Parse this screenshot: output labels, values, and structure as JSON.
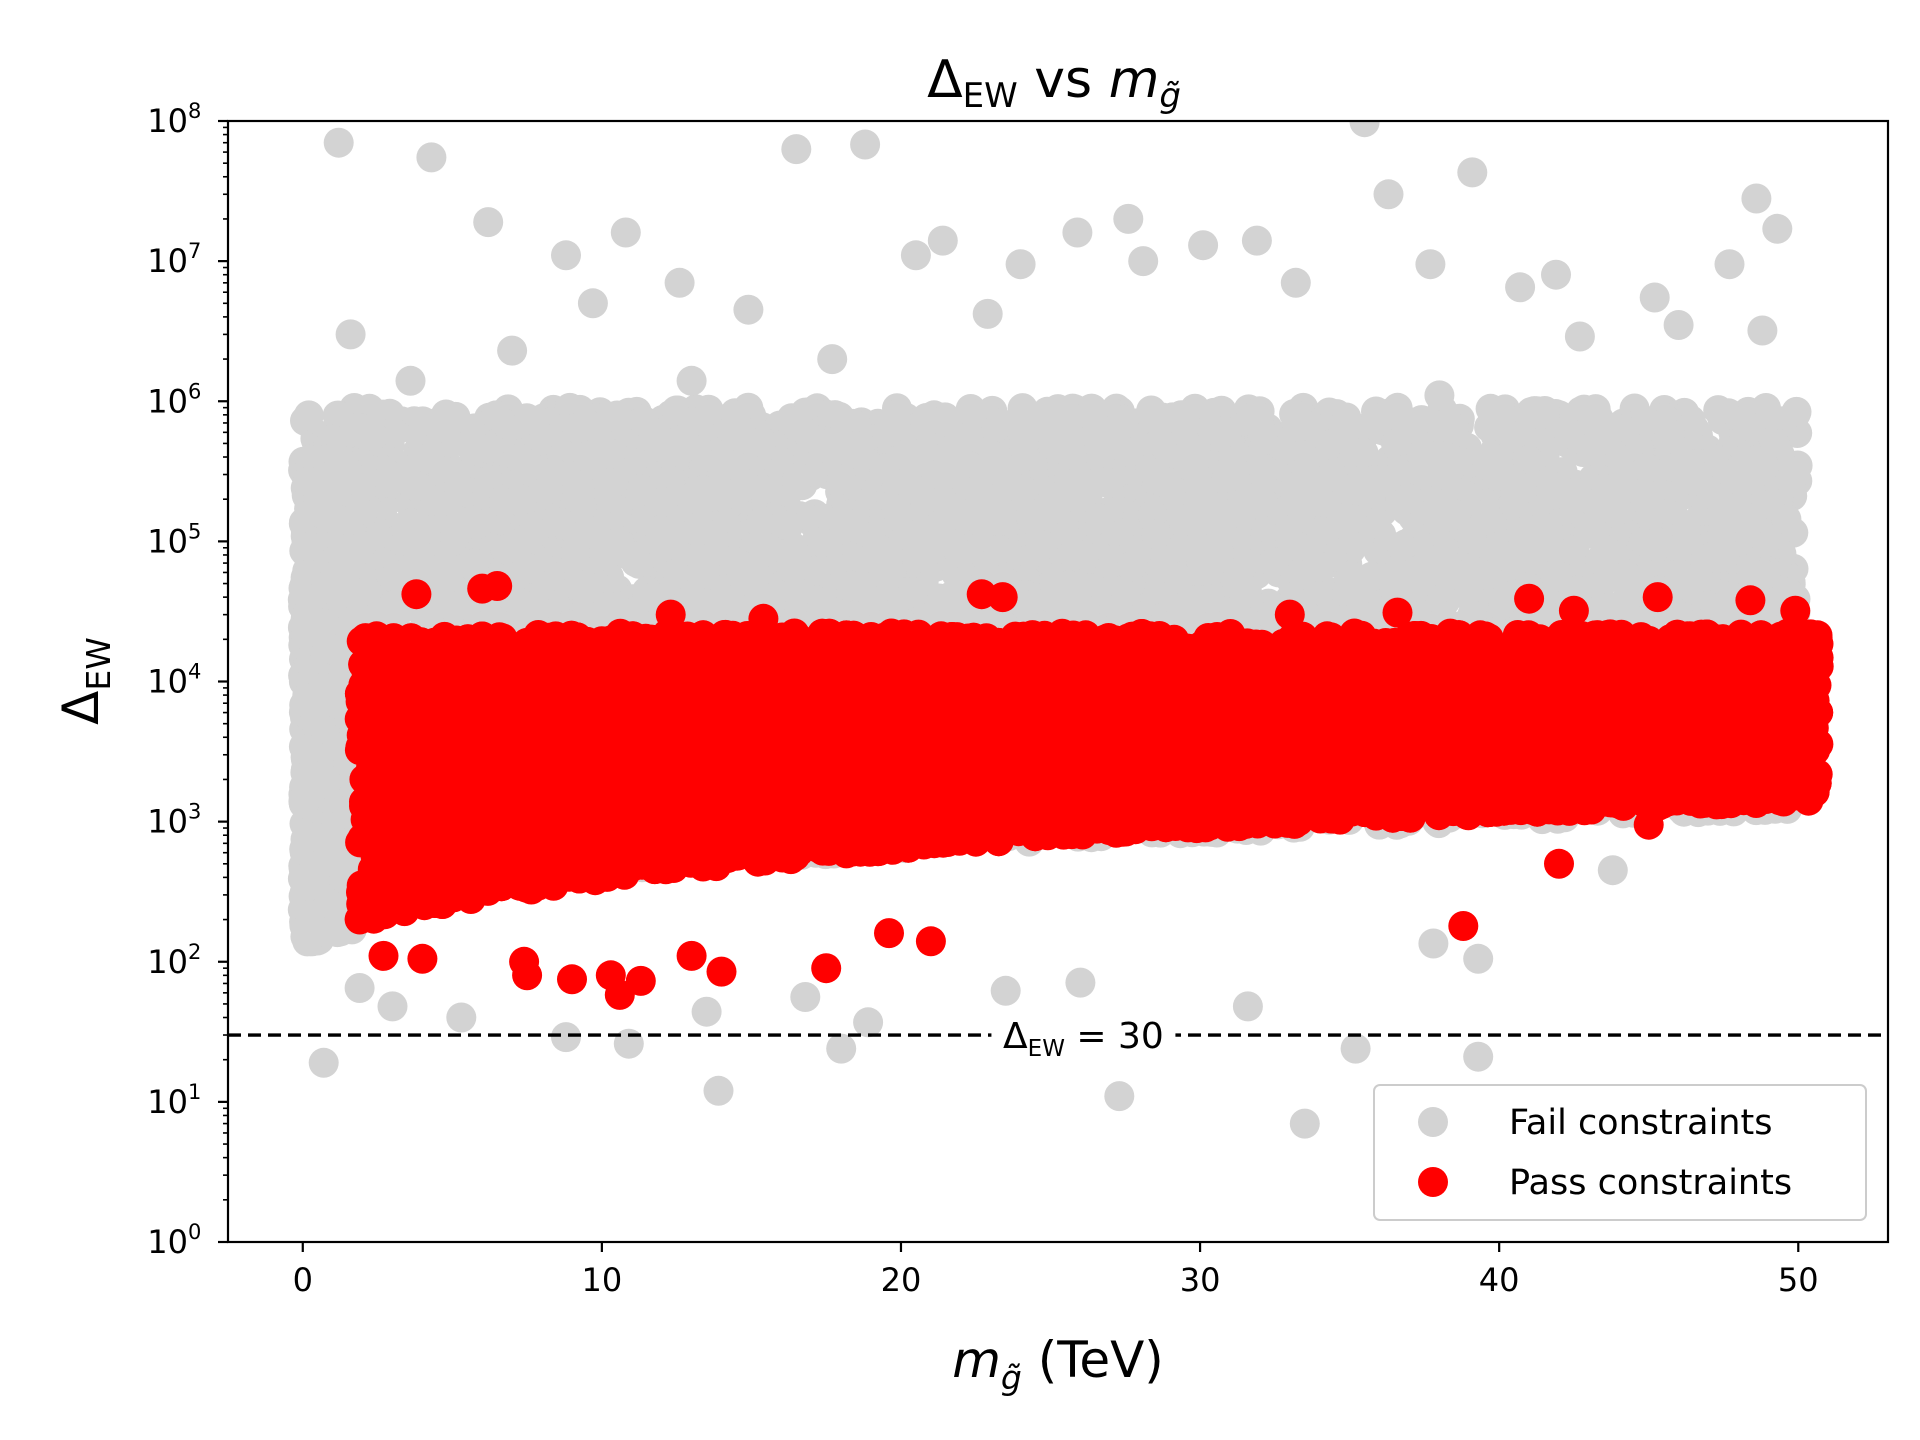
{
  "chart_data": {
    "type": "scatter",
    "title": {
      "base": "Δ",
      "sub": "EW",
      "mid": " vs ",
      "var": "m",
      "var_sub": "g̃"
    },
    "xlabel": {
      "var": "m",
      "var_sub": "g̃",
      "unit": " (TeV)"
    },
    "ylabel": {
      "base": "Δ",
      "sub": "EW"
    },
    "xlim": [
      -2.5,
      53.0
    ],
    "ylim": [
      1,
      100000000
    ],
    "yscale": "log",
    "grid": false,
    "legend_position": "lower right",
    "x_ticks": [
      {
        "value": 0,
        "label": "0"
      },
      {
        "value": 10,
        "label": "10"
      },
      {
        "value": 20,
        "label": "20"
      },
      {
        "value": 30,
        "label": "30"
      },
      {
        "value": 40,
        "label": "40"
      },
      {
        "value": 50,
        "label": "50"
      }
    ],
    "y_ticks": [
      {
        "value": 1,
        "base": "10",
        "exp": "0"
      },
      {
        "value": 10,
        "base": "10",
        "exp": "1"
      },
      {
        "value": 100,
        "base": "10",
        "exp": "2"
      },
      {
        "value": 1000,
        "base": "10",
        "exp": "3"
      },
      {
        "value": 10000,
        "base": "10",
        "exp": "4"
      },
      {
        "value": 100000,
        "base": "10",
        "exp": "5"
      },
      {
        "value": 1000000,
        "base": "10",
        "exp": "6"
      },
      {
        "value": 10000000,
        "base": "10",
        "exp": "7"
      },
      {
        "value": 100000000,
        "base": "10",
        "exp": "8"
      }
    ],
    "reference_line": {
      "y": 30,
      "style": "dashed",
      "color": "#000000",
      "label": {
        "base": "Δ",
        "sub": "EW",
        "rest": " = 30"
      },
      "label_x": 26.1
    },
    "series": [
      {
        "name": "Fail constraints",
        "color": "#d3d3d3",
        "bulk_regions": [
          {
            "x0": 0.0,
            "x1": 50.0,
            "lo0": 250,
            "lo1": 1200,
            "hi": 900000,
            "count": 5500
          },
          {
            "x0": 0.0,
            "x1": 2.0,
            "lo0": 130,
            "lo1": 170,
            "hi": 400000,
            "count": 700
          }
        ],
        "outliers": [
          [
            0.7,
            19
          ],
          [
            1.2,
            70000000
          ],
          [
            4.3,
            55000000
          ],
          [
            16.5,
            63000000
          ],
          [
            18.8,
            68000000
          ],
          [
            35.5,
            98000000
          ],
          [
            39.1,
            43000000
          ],
          [
            36.3,
            30000000
          ],
          [
            48.6,
            28000000
          ],
          [
            49.3,
            17000000
          ],
          [
            6.2,
            19000000
          ],
          [
            3.6,
            1400000
          ],
          [
            1.6,
            3000000
          ],
          [
            8.8,
            11000000
          ],
          [
            10.8,
            16000000
          ],
          [
            12.6,
            7000000
          ],
          [
            14.9,
            4500000
          ],
          [
            20.5,
            11000000
          ],
          [
            21.4,
            14000000
          ],
          [
            24.0,
            9500000
          ],
          [
            25.9,
            16000000
          ],
          [
            27.6,
            20000000
          ],
          [
            28.1,
            10000000
          ],
          [
            30.1,
            13000000
          ],
          [
            31.9,
            14000000
          ],
          [
            33.2,
            7000000
          ],
          [
            37.7,
            9500000
          ],
          [
            40.7,
            6500000
          ],
          [
            41.9,
            8000000
          ],
          [
            45.2,
            5500000
          ],
          [
            47.7,
            9500000
          ],
          [
            48.8,
            3200000
          ],
          [
            46.0,
            3500000
          ],
          [
            42.7,
            2900000
          ],
          [
            38.0,
            1100000
          ],
          [
            22.9,
            4200000
          ],
          [
            17.7,
            2000000
          ],
          [
            13.0,
            1400000
          ],
          [
            9.7,
            5000000
          ],
          [
            7.0,
            2300000
          ],
          [
            33.5,
            7
          ],
          [
            27.3,
            11
          ],
          [
            13.9,
            12
          ],
          [
            39.3,
            21
          ],
          [
            35.2,
            24
          ],
          [
            18.0,
            24
          ],
          [
            10.9,
            26
          ],
          [
            8.8,
            29
          ],
          [
            3.0,
            48
          ],
          [
            31.6,
            48
          ],
          [
            5.3,
            40
          ],
          [
            23.5,
            62
          ],
          [
            26.0,
            71
          ],
          [
            1.9,
            65
          ],
          [
            43.8,
            450
          ],
          [
            39.3,
            105
          ],
          [
            37.8,
            135
          ],
          [
            16.8,
            56
          ],
          [
            18.9,
            37
          ],
          [
            13.5,
            44
          ]
        ]
      },
      {
        "name": "Pass constraints",
        "color": "#ff0000",
        "bulk_regions": [
          {
            "x0": 1.9,
            "x1": 50.7,
            "lo0": 180,
            "lo1": 1400,
            "hi": 22000,
            "count": 6500
          }
        ],
        "outliers": [
          [
            2.7,
            110
          ],
          [
            7.5,
            80
          ],
          [
            9.0,
            75
          ],
          [
            10.6,
            58
          ],
          [
            11.3,
            73
          ],
          [
            14.0,
            85
          ],
          [
            6.5,
            48000
          ],
          [
            6.0,
            46000
          ],
          [
            3.8,
            42000
          ],
          [
            22.7,
            42000
          ],
          [
            23.4,
            40000
          ],
          [
            45.3,
            40000
          ],
          [
            48.4,
            38000
          ],
          [
            41.0,
            39000
          ],
          [
            12.3,
            30000
          ],
          [
            15.4,
            28000
          ],
          [
            33.0,
            30000
          ],
          [
            36.6,
            31000
          ],
          [
            42.5,
            32000
          ],
          [
            49.9,
            32000
          ],
          [
            42.0,
            500
          ],
          [
            45.0,
            950
          ],
          [
            38.8,
            180
          ],
          [
            19.6,
            160
          ],
          [
            10.3,
            80
          ],
          [
            7.4,
            100
          ],
          [
            4.0,
            105
          ],
          [
            17.5,
            90
          ],
          [
            13.0,
            110
          ],
          [
            21.0,
            140
          ]
        ]
      }
    ]
  }
}
